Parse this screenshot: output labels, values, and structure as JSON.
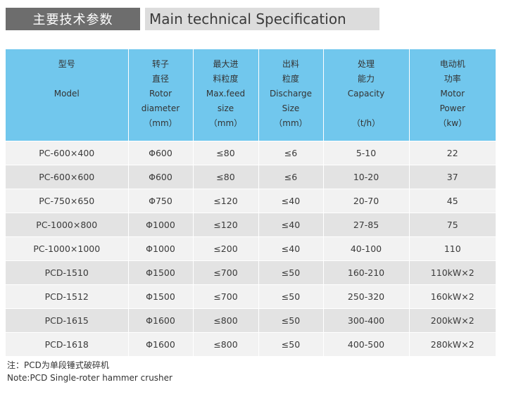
{
  "title": {
    "cn": "主要技术参数",
    "en": "Main technical Specification"
  },
  "table": {
    "headers": [
      {
        "lines": [
          "型号",
          "",
          "Model"
        ]
      },
      {
        "lines": [
          "转子",
          "直径",
          "Rotor",
          "diameter",
          "（mm）"
        ]
      },
      {
        "lines": [
          "最大进",
          "料粒度",
          "Max.feed",
          "size",
          "（mm）"
        ]
      },
      {
        "lines": [
          "出料",
          "粒度",
          "Discharge",
          "Size",
          "（mm）"
        ]
      },
      {
        "lines": [
          "处理",
          "能力",
          "Capacity",
          "",
          "（t/h）"
        ]
      },
      {
        "lines": [
          "电动机",
          "功率",
          "Motor",
          "Power",
          "（kw）"
        ]
      }
    ],
    "rows": [
      [
        "PC-600×400",
        "Φ600",
        "≤80",
        "≤6",
        "5-10",
        "22"
      ],
      [
        "PC-600×600",
        "Φ600",
        "≤80",
        "≤6",
        "10-20",
        "37"
      ],
      [
        "PC-750×650",
        "Φ750",
        "≤120",
        "≤40",
        "20-70",
        "45"
      ],
      [
        "PC-1000×800",
        "Φ1000",
        "≤120",
        "≤40",
        "27-85",
        "75"
      ],
      [
        "PC-1000×1000",
        "Φ1000",
        "≤200",
        "≤40",
        "40-100",
        "110"
      ],
      [
        "PCD-1510",
        "Φ1500",
        "≤700",
        "≤50",
        "160-210",
        "110kW×2"
      ],
      [
        "PCD-1512",
        "Φ1500",
        "≤700",
        "≤50",
        "250-320",
        "160kW×2"
      ],
      [
        "PCD-1615",
        "Φ1600",
        "≤800",
        "≤50",
        "300-400",
        "200kW×2"
      ],
      [
        "PCD-1618",
        "Φ1600",
        "≤800",
        "≤50",
        "400-500",
        "280kW×2"
      ]
    ]
  },
  "notes": {
    "cn": "注：PCD为单段锤式破碎机",
    "en": "Note:PCD Single-roter hammer crusher"
  }
}
